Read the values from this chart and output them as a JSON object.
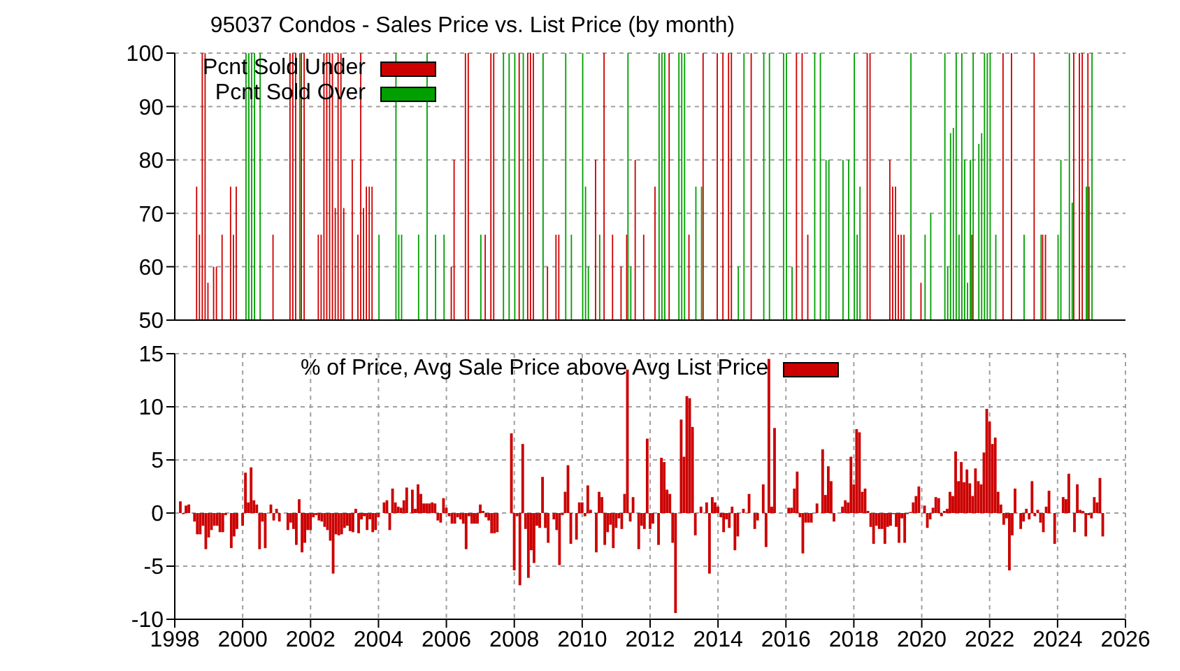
{
  "chart_data": [
    {
      "type": "bar",
      "title": "95037 Condos - Sales Price vs. List Price (by month)",
      "xlim": [
        "1998",
        "2026"
      ],
      "xticks": [
        "1998",
        "2000",
        "2002",
        "2004",
        "2006",
        "2008",
        "2010",
        "2012",
        "2014",
        "2016",
        "2018",
        "2020",
        "2022",
        "2024",
        "2026"
      ],
      "ylim": [
        50,
        100
      ],
      "yticks": [
        50,
        60,
        70,
        80,
        90,
        100
      ],
      "tick_labels": "y",
      "grid": true,
      "legend": "top left",
      "series": [
        {
          "name": "Pcnt Sold Under",
          "color": "#cc0000",
          "x": [
            "1998-09",
            "1998-10",
            "1998-11",
            "1998-12",
            "1999-01",
            "1999-03",
            "1999-04",
            "1999-06",
            "1999-09",
            "1999-10",
            "1999-11",
            "2000-12",
            "2001-06",
            "2001-07",
            "2001-08",
            "2001-10",
            "2001-11",
            "2002-04",
            "2002-05",
            "2002-06",
            "2002-07",
            "2002-08",
            "2002-09",
            "2002-10",
            "2002-11",
            "2002-12",
            "2003-01",
            "2003-04",
            "2003-06",
            "2003-07",
            "2003-08",
            "2003-09",
            "2003-10",
            "2003-11",
            "2006-03",
            "2006-04",
            "2006-08",
            "2006-09",
            "2007-03",
            "2007-05",
            "2007-06",
            "2008-03",
            "2008-06",
            "2008-07",
            "2008-08",
            "2009-01",
            "2009-04",
            "2009-05",
            "2010-06",
            "2010-09",
            "2010-12",
            "2011-03",
            "2011-05",
            "2011-08",
            "2011-11",
            "2012-03",
            "2012-08",
            "2013-03",
            "2013-08",
            "2014-01",
            "2014-03",
            "2014-05",
            "2014-06",
            "2015-01",
            "2016-05",
            "2016-07",
            "2016-09",
            "2018-06",
            "2018-07",
            "2019-02",
            "2019-03",
            "2019-04",
            "2019-05",
            "2019-06",
            "2019-07",
            "2020-01",
            "2021-07",
            "2022-06",
            "2022-09",
            "2023-05",
            "2023-08",
            "2023-09",
            "2024-07",
            "2024-09",
            "2024-10",
            "2024-12"
          ],
          "values": [
            75,
            66,
            100,
            100,
            57,
            60,
            60,
            66,
            75,
            66,
            75,
            66,
            100,
            100,
            100,
            100,
            100,
            66,
            66,
            100,
            100,
            100,
            100,
            71,
            100,
            100,
            71,
            80,
            66,
            100,
            71,
            75,
            75,
            75,
            60,
            80,
            100,
            100,
            66,
            100,
            100,
            100,
            100,
            100,
            100,
            60,
            66,
            66,
            80,
            100,
            66,
            60,
            66,
            80,
            66,
            75,
            100,
            66,
            100,
            100,
            100,
            100,
            100,
            100,
            100,
            100,
            66,
            100,
            100,
            80,
            75,
            75,
            66,
            66,
            66,
            57,
            66,
            100,
            100,
            100,
            66,
            66,
            100,
            100,
            100,
            100
          ]
        },
        {
          "name": "Pcnt Sold Over",
          "color": "#00a000",
          "x": [
            "2000-02",
            "2000-03",
            "2000-04",
            "2000-05",
            "2000-07",
            "2001-09",
            "2004-01",
            "2004-07",
            "2004-08",
            "2004-09",
            "2005-03",
            "2005-06",
            "2005-09",
            "2005-12",
            "2007-01",
            "2007-09",
            "2007-11",
            "2008-01",
            "2008-04",
            "2008-11",
            "2009-07",
            "2009-09",
            "2010-01",
            "2010-02",
            "2010-03",
            "2010-07",
            "2011-05",
            "2011-06",
            "2012-04",
            "2012-05",
            "2012-06",
            "2012-11",
            "2012-12",
            "2013-01",
            "2013-05",
            "2013-07",
            "2014-08",
            "2014-10",
            "2015-05",
            "2015-07",
            "2015-12",
            "2016-01",
            "2016-03",
            "2016-11",
            "2017-01",
            "2017-03",
            "2017-04",
            "2017-09",
            "2017-11",
            "2018-01",
            "2018-02",
            "2018-03",
            "2019-09",
            "2020-02",
            "2020-04",
            "2020-09",
            "2020-10",
            "2020-11",
            "2020-12",
            "2021-01",
            "2021-02",
            "2021-03",
            "2021-04",
            "2021-05",
            "2021-06",
            "2021-07",
            "2021-09",
            "2021-10",
            "2021-11",
            "2021-12",
            "2022-01",
            "2022-03",
            "2023-01",
            "2023-07",
            "2024-01",
            "2024-02",
            "2024-05",
            "2024-06",
            "2024-11",
            "2024-12",
            "2025-01"
          ],
          "values": [
            100,
            100,
            100,
            100,
            100,
            100,
            66,
            100,
            66,
            66,
            66,
            100,
            66,
            66,
            66,
            100,
            100,
            100,
            100,
            100,
            100,
            66,
            100,
            75,
            60,
            66,
            100,
            60,
            100,
            100,
            100,
            100,
            100,
            100,
            75,
            75,
            60,
            100,
            100,
            100,
            100,
            100,
            60,
            100,
            100,
            80,
            80,
            80,
            80,
            100,
            66,
            75,
            100,
            66,
            70,
            100,
            60,
            85,
            86,
            100,
            66,
            100,
            80,
            57,
            80,
            100,
            83,
            85,
            100,
            100,
            100,
            66,
            66,
            66,
            66,
            80,
            100,
            72,
            75,
            75,
            100
          ]
        }
      ]
    },
    {
      "type": "bar",
      "xlim": [
        "1998",
        "2026"
      ],
      "xticks": [
        "1998",
        "2000",
        "2002",
        "2004",
        "2006",
        "2008",
        "2010",
        "2012",
        "2014",
        "2016",
        "2018",
        "2020",
        "2022",
        "2024",
        "2026"
      ],
      "ylim": [
        -10,
        15
      ],
      "yticks": [
        -10,
        -5,
        0,
        5,
        10,
        15
      ],
      "grid": true,
      "legend": "top",
      "x": [
        "1998-03",
        "1998-04",
        "1998-05",
        "1998-06",
        "1998-07",
        "1998-08",
        "1998-09",
        "1998-10",
        "1998-11",
        "1998-12",
        "1999-01",
        "1999-02",
        "1999-03",
        "1999-04",
        "1999-05",
        "1999-06",
        "1999-07",
        "1999-08",
        "1999-09",
        "1999-10",
        "1999-11",
        "1999-12",
        "2000-01",
        "2000-02",
        "2000-03",
        "2000-04",
        "2000-05",
        "2000-06",
        "2000-07",
        "2000-08",
        "2000-09",
        "2000-10",
        "2000-11",
        "2000-12",
        "2001-01",
        "2001-02",
        "2001-03",
        "2001-04",
        "2001-05",
        "2001-06",
        "2001-07",
        "2001-08",
        "2001-09",
        "2001-10",
        "2001-11",
        "2001-12",
        "2002-01",
        "2002-02",
        "2002-03",
        "2002-04",
        "2002-05",
        "2002-06",
        "2002-07",
        "2002-08",
        "2002-09",
        "2002-10",
        "2002-11",
        "2002-12",
        "2003-01",
        "2003-02",
        "2003-03",
        "2003-04",
        "2003-05",
        "2003-06",
        "2003-07",
        "2003-08",
        "2003-09",
        "2003-10",
        "2003-11",
        "2003-12",
        "2004-01",
        "2004-02",
        "2004-03",
        "2004-04",
        "2004-05",
        "2004-06",
        "2004-07",
        "2004-08",
        "2004-09",
        "2004-10",
        "2004-11",
        "2004-12",
        "2005-01",
        "2005-02",
        "2005-03",
        "2005-04",
        "2005-05",
        "2005-06",
        "2005-07",
        "2005-08",
        "2005-09",
        "2005-10",
        "2005-11",
        "2005-12",
        "2006-01",
        "2006-02",
        "2006-03",
        "2006-04",
        "2006-05",
        "2006-06",
        "2006-07",
        "2006-08",
        "2006-09",
        "2006-10",
        "2006-11",
        "2006-12",
        "2007-01",
        "2007-02",
        "2007-03",
        "2007-04",
        "2007-05",
        "2007-06",
        "2007-07",
        "2007-08",
        "2007-09",
        "2007-10",
        "2007-11",
        "2007-12",
        "2008-01",
        "2008-02",
        "2008-03",
        "2008-04",
        "2008-05",
        "2008-06",
        "2008-07",
        "2008-08",
        "2008-09",
        "2008-10",
        "2008-11",
        "2008-12",
        "2009-01",
        "2009-02",
        "2009-03",
        "2009-04",
        "2009-05",
        "2009-06",
        "2009-07",
        "2009-08",
        "2009-09",
        "2009-10",
        "2009-11",
        "2009-12",
        "2010-01",
        "2010-02",
        "2010-03",
        "2010-04",
        "2010-05",
        "2010-06",
        "2010-07",
        "2010-08",
        "2010-09",
        "2010-10",
        "2010-11",
        "2010-12",
        "2011-01",
        "2011-02",
        "2011-03",
        "2011-04",
        "2011-05",
        "2011-06",
        "2011-07",
        "2011-08",
        "2011-09",
        "2011-10",
        "2011-11",
        "2011-12",
        "2012-01",
        "2012-02",
        "2012-03",
        "2012-04",
        "2012-05",
        "2012-06",
        "2012-07",
        "2012-08",
        "2012-09",
        "2012-10",
        "2012-11",
        "2012-12",
        "2013-01",
        "2013-02",
        "2013-03",
        "2013-04",
        "2013-05",
        "2013-06",
        "2013-07",
        "2013-08",
        "2013-09",
        "2013-10",
        "2013-11",
        "2013-12",
        "2014-01",
        "2014-02",
        "2014-03",
        "2014-04",
        "2014-05",
        "2014-06",
        "2014-07",
        "2014-08",
        "2014-09",
        "2014-10",
        "2014-11",
        "2014-12",
        "2015-01",
        "2015-02",
        "2015-03",
        "2015-04",
        "2015-05",
        "2015-06",
        "2015-07",
        "2015-08",
        "2015-09",
        "2015-10",
        "2015-11",
        "2015-12",
        "2016-01",
        "2016-02",
        "2016-03",
        "2016-04",
        "2016-05",
        "2016-06",
        "2016-07",
        "2016-08",
        "2016-09",
        "2016-10",
        "2016-11",
        "2016-12",
        "2017-01",
        "2017-02",
        "2017-03",
        "2017-04",
        "2017-05",
        "2017-06",
        "2017-07",
        "2017-08",
        "2017-09",
        "2017-10",
        "2017-11",
        "2017-12",
        "2018-01",
        "2018-02",
        "2018-03",
        "2018-04",
        "2018-05",
        "2018-06",
        "2018-07",
        "2018-08",
        "2018-09",
        "2018-10",
        "2018-11",
        "2018-12",
        "2019-01",
        "2019-02",
        "2019-03",
        "2019-04",
        "2019-05",
        "2019-06",
        "2019-07",
        "2019-08",
        "2019-09",
        "2019-10",
        "2019-11",
        "2019-12",
        "2020-01",
        "2020-02",
        "2020-03",
        "2020-04",
        "2020-05",
        "2020-06",
        "2020-07",
        "2020-08",
        "2020-09",
        "2020-10",
        "2020-11",
        "2020-12",
        "2021-01",
        "2021-02",
        "2021-03",
        "2021-04",
        "2021-05",
        "2021-06",
        "2021-07",
        "2021-08",
        "2021-09",
        "2021-10",
        "2021-11",
        "2021-12",
        "2022-01",
        "2022-02",
        "2022-03",
        "2022-04",
        "2022-05",
        "2022-06",
        "2022-07",
        "2022-08",
        "2022-09",
        "2022-10",
        "2022-11",
        "2022-12",
        "2023-01",
        "2023-02",
        "2023-03",
        "2023-04",
        "2023-05",
        "2023-06",
        "2023-07",
        "2023-08",
        "2023-09",
        "2023-10",
        "2023-11",
        "2023-12",
        "2024-01",
        "2024-02",
        "2024-03",
        "2024-04",
        "2024-05",
        "2024-06",
        "2024-07",
        "2024-08",
        "2024-09",
        "2024-10",
        "2024-11",
        "2024-12",
        "2025-01",
        "2025-02",
        "2025-03",
        "2025-04",
        "2025-05"
      ],
      "series": [
        {
          "name": "% of Price, Avg Sale Price above Avg List Price",
          "color": "#cc0000",
          "values": [
            1.1,
            -0.1,
            0.7,
            0.8,
            0,
            -0.8,
            -2.0,
            -2.0,
            -1.2,
            -3.4,
            -2.3,
            -1.6,
            -1.2,
            -1.2,
            -1.8,
            -1.8,
            -0.2,
            0,
            -3.3,
            -2.2,
            -1.5,
            0,
            -1.2,
            3.8,
            1.0,
            4.3,
            1.2,
            0.8,
            -3.4,
            -0.8,
            -3.3,
            0,
            0.8,
            -0.7,
            0.4,
            -0.8,
            0,
            0,
            -1.6,
            -0.9,
            -1.5,
            -3.0,
            1.3,
            -3.7,
            -2.8,
            -1.6,
            -1.6,
            -0.4,
            -0.2,
            -0.7,
            -0.8,
            -1.3,
            -1.6,
            -2.6,
            -5.7,
            -2.0,
            -2.1,
            -2.0,
            -1.4,
            -1.2,
            -1.7,
            -1.8,
            0.4,
            -1.9,
            -0.6,
            -0.3,
            -1.6,
            -0.6,
            -1.8,
            -1.6,
            -0.4,
            0,
            1.0,
            1.2,
            -1.6,
            2.3,
            1.0,
            0.6,
            0.5,
            1.2,
            2.4,
            0,
            2.2,
            0.4,
            2.7,
            1.8,
            0.9,
            0.9,
            0.9,
            1.0,
            0.9,
            -0.7,
            -0.9,
            1.4,
            0.5,
            -0.3,
            -1.0,
            -1.0,
            -0.4,
            -0.6,
            -1.0,
            -3.4,
            -0.3,
            -1.0,
            -1.0,
            -1.0,
            0.8,
            0.2,
            -0.4,
            -0.7,
            -1.9,
            -1.9,
            -1.8,
            0,
            0,
            0,
            0,
            7.5,
            -5.4,
            -0.3,
            -6.8,
            6.5,
            -1.5,
            -6.1,
            -3.5,
            -4.7,
            -1.2,
            -1.4,
            3.4,
            -1.4,
            -2.8,
            0,
            -0.6,
            -1.6,
            -4.9,
            -0.2,
            2.0,
            4.5,
            -2.9,
            0,
            -2.5,
            1.0,
            1.0,
            -0.3,
            2.6,
            0.3,
            0,
            -3.7,
            2.0,
            1.5,
            -3.0,
            -1.8,
            -1.1,
            -3.3,
            -1.4,
            -0.5,
            -1.5,
            1.8,
            13.5,
            -0.8,
            1.5,
            0,
            -3.4,
            -1.2,
            -1.5,
            7.0,
            -1.5,
            -1.0,
            0,
            -3.0,
            5.2,
            4.8,
            2.2,
            1.8,
            -2.8,
            -9.4,
            0,
            8.8,
            5.3,
            11.0,
            10.8,
            8.1,
            -2.1,
            0,
            0.6,
            0,
            1.0,
            -5.7,
            1.5,
            1.0,
            0.6,
            -0.4,
            -1.8,
            -0.6,
            -1.4,
            0.6,
            -3.5,
            -2.2,
            0,
            0.4,
            0,
            1.8,
            0,
            -1.5,
            -0.7,
            0,
            2.7,
            -3.2,
            14.5,
            0.6,
            8.0,
            0,
            0,
            0,
            0,
            0.5,
            0.5,
            2.3,
            3.9,
            -0.4,
            -3.8,
            -0.9,
            -0.9,
            -0.9,
            0,
            0.9,
            0,
            6.0,
            1.7,
            4.4,
            3.0,
            -0.8,
            0,
            0,
            0.6,
            1.2,
            1.0,
            5.3,
            2.7,
            7.9,
            7.6,
            2.0,
            2.3,
            0.2,
            -1.3,
            -2.9,
            -1.2,
            -1.5,
            -1.5,
            -2.9,
            -1.3,
            -1.2,
            -0.1,
            -1.3,
            -2.8,
            -0.5,
            -2.8,
            -0.1,
            0.1,
            1.0,
            1.6,
            2.5,
            0,
            0.7,
            -1.4,
            -0.6,
            0.5,
            1.5,
            1.4,
            -0.3,
            0.2,
            0.4,
            2.0,
            1.6,
            5.8,
            3.0,
            4.8,
            2.9,
            4.1,
            2.8,
            1.6,
            4.2,
            3.0,
            2.7,
            5.7,
            9.8,
            8.6,
            6.5,
            7.1,
            2.0,
            0.8,
            -1.1,
            -0.5,
            -5.4,
            -2.1,
            2.3,
            0,
            -1.5,
            -0.8,
            0.4,
            -0.6,
            3.0,
            -0.3,
            0.3,
            -0.9,
            -1.8,
            0.6,
            2.1,
            0,
            -2.9,
            0,
            0,
            1.5,
            1.3,
            3.7,
            0,
            -1.8,
            2.7,
            0.3,
            0.2,
            -2.2,
            -0.2,
            -0.5,
            1.5,
            1.0,
            3.3,
            -2.2
          ]
        }
      ]
    }
  ]
}
